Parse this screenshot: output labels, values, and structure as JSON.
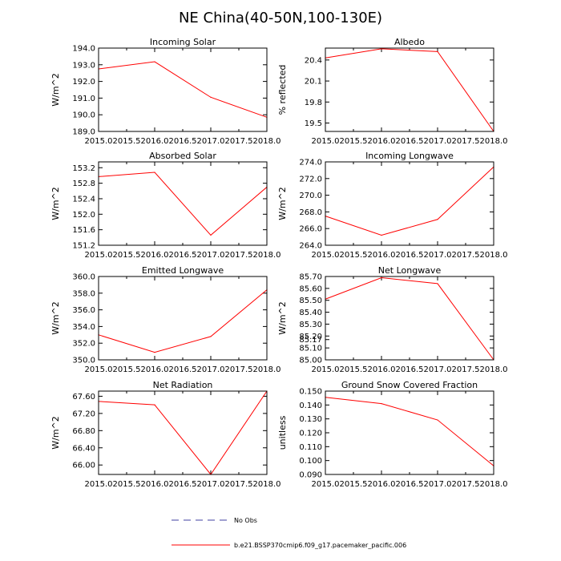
{
  "figure": {
    "title": "NE China(40-50N,100-130E)",
    "line_color": "#ff0000",
    "obs_color": "#4040a0"
  },
  "legend": {
    "obs_label": "No Obs",
    "model_label": "b.e21.BSSP370cmip6.f09_g17.pacemaker_pacific.006"
  },
  "chart_data": [
    {
      "type": "line",
      "title": "Incoming Solar",
      "ylabel": "W/m^2",
      "x": [
        2015,
        2016,
        2017,
        2018
      ],
      "values": [
        192.75,
        193.18,
        191.05,
        189.85
      ],
      "xlim": [
        2015,
        2018
      ],
      "ylim": [
        189.0,
        194.0
      ],
      "xticks": [
        2015,
        2015.5,
        2016,
        2016.5,
        2017,
        2017.5,
        2018
      ],
      "xtick_labels": [
        "2015.0",
        "2015.5",
        "2016.0",
        "2016.5",
        "2017.0",
        "2017.5",
        "2018.0"
      ],
      "yticks": [
        189,
        190,
        191,
        192,
        193,
        194
      ],
      "ytick_labels": [
        "189.0",
        "190.0",
        "191.0",
        "192.0",
        "193.0",
        "194.0"
      ]
    },
    {
      "type": "line",
      "title": "Albedo",
      "ylabel": "% reflected",
      "x": [
        2015,
        2016,
        2017,
        2018
      ],
      "values": [
        20.43,
        20.56,
        20.52,
        19.38
      ],
      "xlim": [
        2015,
        2018
      ],
      "ylim": [
        19.38,
        20.57
      ],
      "xticks": [
        2015,
        2015.5,
        2016,
        2016.5,
        2017,
        2017.5,
        2018
      ],
      "xtick_labels": [
        "2015.0",
        "2015.5",
        "2016.0",
        "2016.5",
        "2017.0",
        "2017.5",
        "2018.0"
      ],
      "yticks": [
        19.5,
        19.8,
        20.1,
        20.4
      ],
      "ytick_labels": [
        "19.5",
        "19.8",
        "20.1",
        "20.4"
      ]
    },
    {
      "type": "line",
      "title": "Absorbed Solar",
      "ylabel": "W/m^2",
      "x": [
        2015,
        2016,
        2017,
        2018
      ],
      "values": [
        152.97,
        153.08,
        151.46,
        152.7
      ],
      "xlim": [
        2015,
        2018
      ],
      "ylim": [
        151.2,
        153.35
      ],
      "xticks": [
        2015,
        2015.5,
        2016,
        2016.5,
        2017,
        2017.5,
        2018
      ],
      "xtick_labels": [
        "2015.0",
        "2015.5",
        "2016.0",
        "2016.5",
        "2017.0",
        "2017.5",
        "2018.0"
      ],
      "yticks": [
        151.2,
        151.6,
        152.0,
        152.4,
        152.8,
        153.2
      ],
      "ytick_labels": [
        "151.2",
        "151.6",
        "152.0",
        "152.4",
        "152.8",
        "153.2"
      ]
    },
    {
      "type": "line",
      "title": "Incoming Longwave",
      "ylabel": "W/m^2",
      "x": [
        2015,
        2016,
        2017,
        2018
      ],
      "values": [
        267.5,
        265.2,
        267.1,
        273.4
      ],
      "xlim": [
        2015,
        2018
      ],
      "ylim": [
        264.0,
        274.0
      ],
      "xticks": [
        2015,
        2015.5,
        2016,
        2016.5,
        2017,
        2017.5,
        2018
      ],
      "xtick_labels": [
        "2015.0",
        "2015.5",
        "2016.0",
        "2016.5",
        "2017.0",
        "2017.5",
        "2018.0"
      ],
      "yticks": [
        264,
        266,
        268,
        270,
        272,
        274
      ],
      "ytick_labels": [
        "264.0",
        "266.0",
        "268.0",
        "270.0",
        "272.0",
        "274.0"
      ]
    },
    {
      "type": "line",
      "title": "Emitted Longwave",
      "ylabel": "W/m^2",
      "x": [
        2015,
        2016,
        2017,
        2018
      ],
      "values": [
        353.0,
        350.9,
        352.8,
        358.4
      ],
      "xlim": [
        2015,
        2018
      ],
      "ylim": [
        350.0,
        360.0
      ],
      "xticks": [
        2015,
        2015.5,
        2016,
        2016.5,
        2017,
        2017.5,
        2018
      ],
      "xtick_labels": [
        "2015.0",
        "2015.5",
        "2016.0",
        "2016.5",
        "2017.0",
        "2017.5",
        "2018.0"
      ],
      "yticks": [
        350,
        352,
        354,
        356,
        358,
        360
      ],
      "ytick_labels": [
        "350.0",
        "352.0",
        "354.0",
        "356.0",
        "358.0",
        "360.0"
      ]
    },
    {
      "type": "line",
      "title": "Net Longwave",
      "ylabel": "W/m^2",
      "x": [
        2015,
        2016,
        2017,
        2018
      ],
      "values": [
        85.51,
        85.69,
        85.64,
        85.0
      ],
      "xlim": [
        2015,
        2018
      ],
      "ylim": [
        85.0,
        85.7
      ],
      "xticks": [
        2015,
        2015.5,
        2016,
        2016.5,
        2017,
        2017.5,
        2018
      ],
      "xtick_labels": [
        "2015.0",
        "2015.5",
        "2016.0",
        "2016.5",
        "2017.0",
        "2017.5",
        "2018.0"
      ],
      "yticks": [
        85.0,
        85.1,
        85.17,
        85.2,
        85.3,
        85.4,
        85.5,
        85.6,
        85.7
      ],
      "ytick_labels": [
        "85.00",
        "85.10",
        "85.17",
        "85.20",
        "85.30",
        "85.40",
        "85.50",
        "85.60",
        "85.70"
      ]
    },
    {
      "type": "line",
      "title": "Net Radiation",
      "ylabel": "W/m^2",
      "x": [
        2015,
        2016,
        2017,
        2018
      ],
      "values": [
        67.48,
        67.4,
        65.78,
        67.72
      ],
      "xlim": [
        2015,
        2018
      ],
      "ylim": [
        65.78,
        67.72
      ],
      "xticks": [
        2015,
        2015.5,
        2016,
        2016.5,
        2017,
        2017.5,
        2018
      ],
      "xtick_labels": [
        "2015.0",
        "2015.5",
        "2016.0",
        "2016.5",
        "2017.0",
        "2017.5",
        "2018.0"
      ],
      "yticks": [
        66.0,
        66.4,
        66.8,
        67.2,
        67.6
      ],
      "ytick_labels": [
        "66.00",
        "66.40",
        "66.80",
        "67.20",
        "67.60"
      ]
    },
    {
      "type": "line",
      "title": "Ground Snow Covered Fraction",
      "ylabel": "unitless",
      "x": [
        2015,
        2016,
        2017,
        2018
      ],
      "values": [
        0.1455,
        0.141,
        0.1292,
        0.0962
      ],
      "xlim": [
        2015,
        2018
      ],
      "ylim": [
        0.09,
        0.15
      ],
      "xticks": [
        2015,
        2015.5,
        2016,
        2016.5,
        2017,
        2017.5,
        2018
      ],
      "xtick_labels": [
        "2015.0",
        "2015.5",
        "2016.0",
        "2016.5",
        "2017.0",
        "2017.5",
        "2018.0"
      ],
      "yticks": [
        0.09,
        0.1,
        0.11,
        0.12,
        0.13,
        0.14,
        0.15
      ],
      "ytick_labels": [
        "0.090",
        "0.100",
        "0.110",
        "0.120",
        "0.130",
        "0.140",
        "0.150"
      ]
    }
  ]
}
